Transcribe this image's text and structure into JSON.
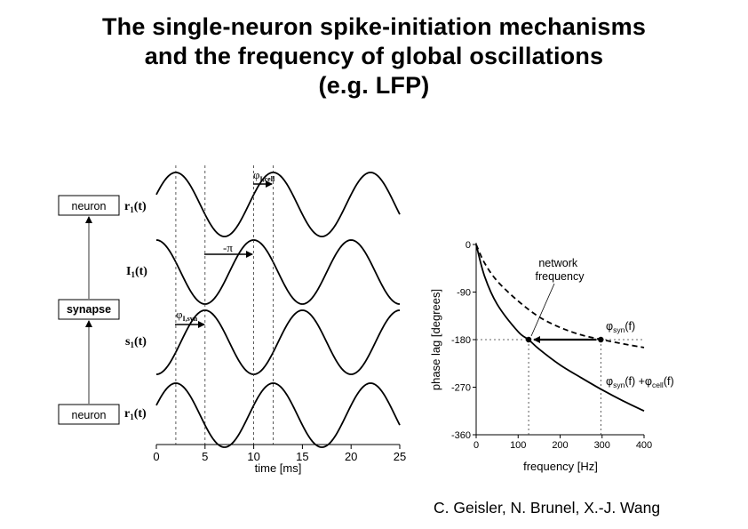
{
  "slide": {
    "title_lines": [
      "The single-neuron spike-initiation mechanisms",
      "and the frequency of global oscillations",
      "(e.g. LFP)"
    ],
    "credit": "C. Geisler, N. Brunel, X.-J. Wang"
  },
  "diagram": {
    "boxes": [
      "neuron",
      "synapse",
      "neuron"
    ]
  },
  "left_panel": {
    "row_labels": [
      {
        "main": "r",
        "sub": "1",
        "suffix": "(t)"
      },
      {
        "main": "I",
        "sub": "1",
        "suffix": "(t)"
      },
      {
        "main": "s",
        "sub": "1",
        "suffix": "(t)"
      },
      {
        "main": "r",
        "sub": "1",
        "suffix": "(t)"
      }
    ],
    "phase_labels": {
      "cell": {
        "main": "φ",
        "sub": "I,cell"
      },
      "minus_pi": "-π",
      "syn": {
        "main": "φ",
        "sub": "I,syn"
      }
    },
    "xlabel": "time [ms]",
    "colors": {
      "line": "#000000",
      "dash": "#333333"
    }
  },
  "chart_data": [
    {
      "type": "line",
      "title": "",
      "xlabel": "time [ms]",
      "ylabel": "",
      "xlim": [
        0,
        25
      ],
      "xticks": [
        "0",
        "5",
        "10",
        "15",
        "20",
        "25"
      ],
      "x_tick_values": [
        0,
        5,
        10,
        15,
        20,
        25
      ],
      "period_ms": 10,
      "vertical_dashed_lines_ms": [
        2,
        5,
        10,
        12
      ],
      "series": [
        {
          "name": "r1(t)",
          "peak_ms": [
            2,
            12,
            22
          ],
          "trough_ms": [
            7,
            17
          ]
        },
        {
          "name": "I1(t)",
          "peak_ms": [
            0,
            10,
            20
          ],
          "trough_ms": [
            5,
            15,
            25
          ]
        },
        {
          "name": "s1(t)",
          "peak_ms": [
            5,
            15,
            25
          ],
          "trough_ms": [
            0,
            10,
            20
          ]
        },
        {
          "name": "r1(t)",
          "peak_ms": [
            2,
            12,
            22
          ],
          "trough_ms": [
            7,
            17
          ]
        }
      ],
      "arrows": [
        {
          "label": "φI,cell",
          "from_ms": 10,
          "to_ms": 12
        },
        {
          "label": "-π",
          "from_ms": 5,
          "to_ms": 10
        },
        {
          "label": "φI,syn",
          "from_ms": 2,
          "to_ms": 5
        }
      ]
    },
    {
      "type": "line",
      "title": "",
      "xlabel": "frequency [Hz]",
      "ylabel": "phase lag [degrees]",
      "xlim": [
        0,
        400
      ],
      "ylim": [
        -360,
        0
      ],
      "xticks": [
        "0",
        "100",
        "200",
        "300",
        "400"
      ],
      "yticks": [
        "0",
        "-90",
        "-180",
        "-270",
        "-360"
      ],
      "x_tick_values": [
        0,
        100,
        200,
        300,
        400
      ],
      "y_tick_values": [
        0,
        -90,
        -180,
        -270,
        -360
      ],
      "series": [
        {
          "label": {
            "pre": "φ",
            "sub": "syn",
            "post": "(f)",
            "pre2": " +φ",
            "sub2": "cell",
            "post2": "(f)"
          },
          "style": "solid",
          "x": [
            0,
            20,
            50,
            100,
            125,
            150,
            200,
            250,
            300,
            350,
            400
          ],
          "y": [
            0,
            -60,
            -113,
            -165,
            -180,
            -198,
            -228,
            -252,
            -275,
            -296,
            -315
          ]
        },
        {
          "label": {
            "pre": "φ",
            "sub": "syn",
            "post": "(f)"
          },
          "style": "dashed",
          "x": [
            0,
            20,
            50,
            100,
            150,
            200,
            250,
            300,
            350,
            400
          ],
          "y": [
            0,
            -35,
            -69,
            -107,
            -137,
            -157,
            -171,
            -180,
            -188,
            -195
          ]
        }
      ],
      "reference_line_y": -180,
      "markers": [
        {
          "x": 125,
          "y": -180
        },
        {
          "x": 297,
          "y": -180
        }
      ],
      "annotation": "network\nfrequency",
      "arrow": {
        "from_x": 297,
        "to_x": 125,
        "y": -180
      }
    }
  ]
}
